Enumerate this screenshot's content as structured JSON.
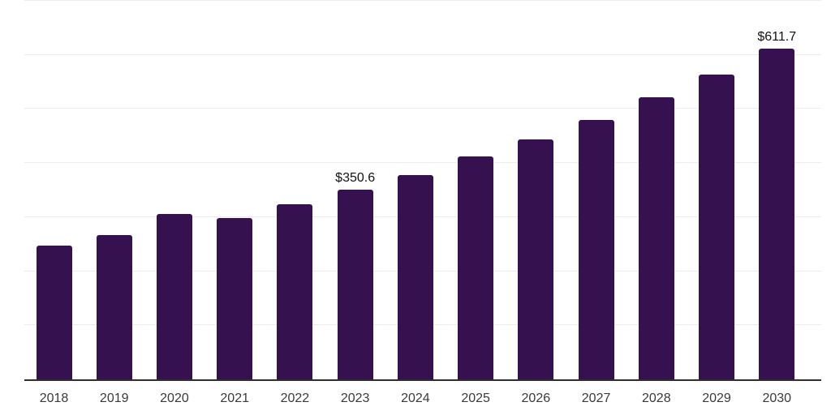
{
  "chart_data": {
    "type": "bar",
    "title": "",
    "xlabel": "",
    "ylabel": "",
    "categories": [
      "2018",
      "2019",
      "2020",
      "2021",
      "2022",
      "2023",
      "2024",
      "2025",
      "2026",
      "2027",
      "2028",
      "2029",
      "2030"
    ],
    "values": [
      248,
      267,
      306,
      298,
      324,
      350.6,
      378,
      412,
      444,
      480,
      521,
      564,
      611.7
    ],
    "annotations": [
      {
        "index": 5,
        "text": "$350.6"
      },
      {
        "index": 12,
        "text": "$611.7"
      }
    ],
    "ylim": [
      0,
      700
    ],
    "grid_step": 100,
    "grid": "horizontal",
    "legend": false,
    "colors": {
      "bar": "#351150",
      "gridline": "#ececec",
      "axis": "#2f2f2f",
      "value_label": "#111111",
      "tick_label": "#3a3a3a",
      "background": "#ffffff"
    }
  }
}
